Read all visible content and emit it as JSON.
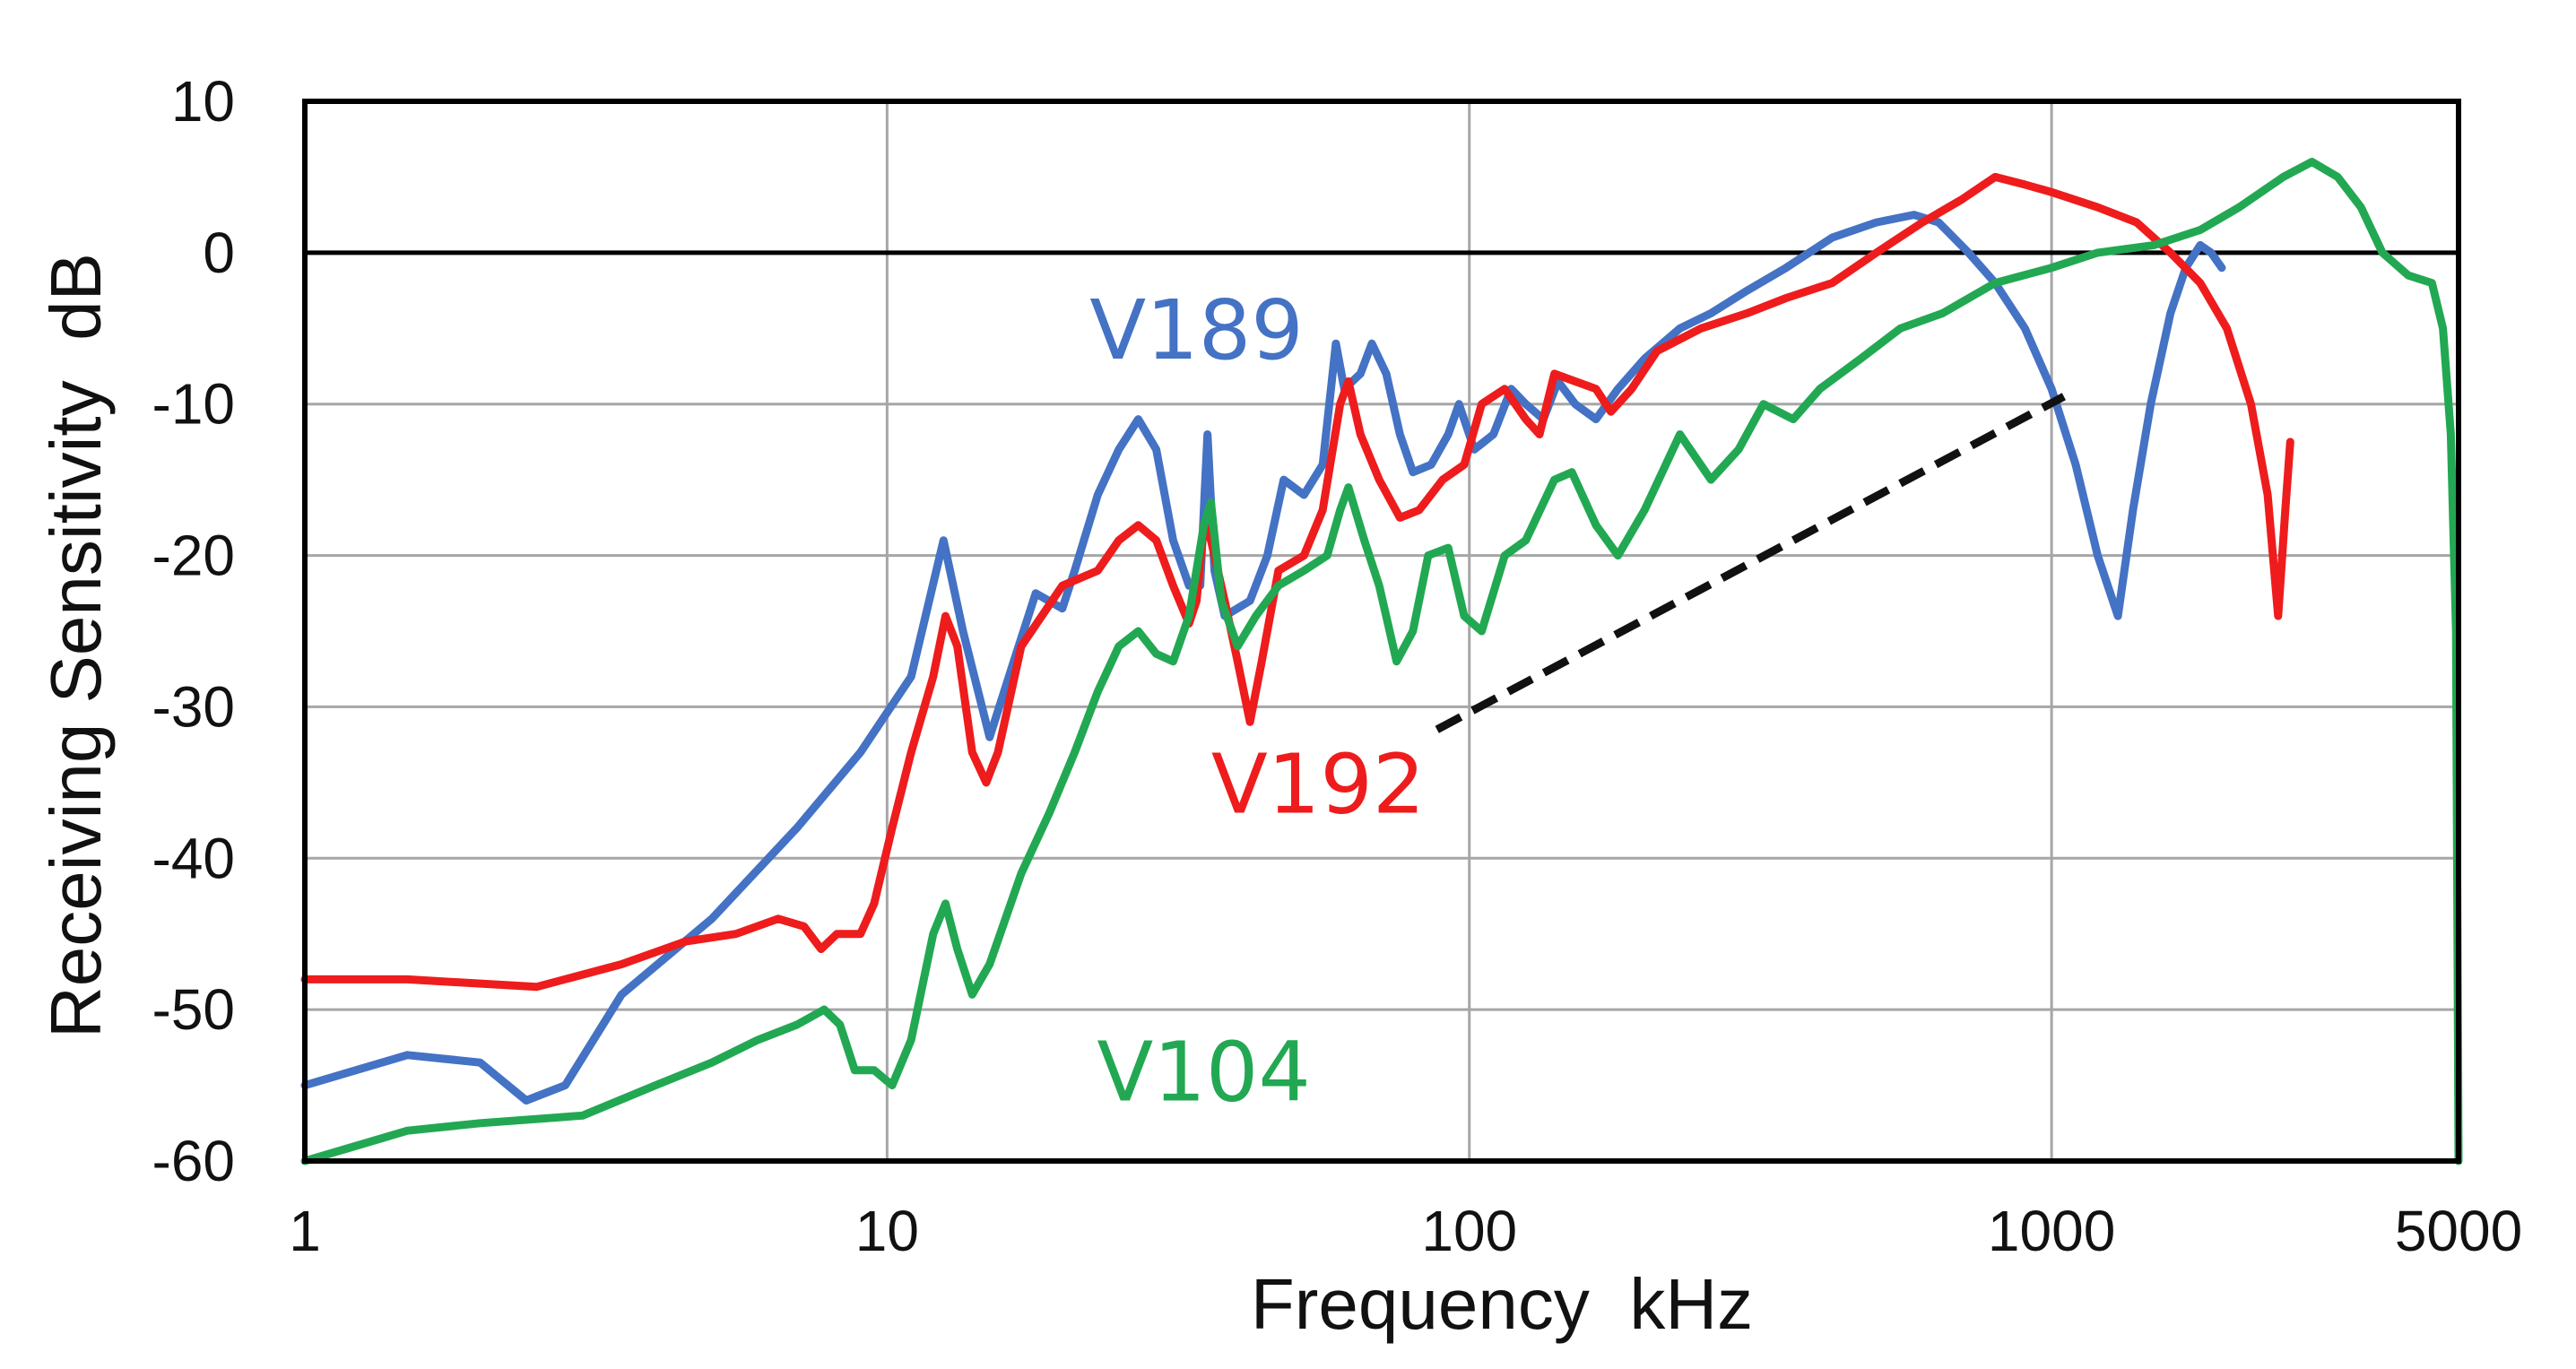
{
  "chart_data": {
    "type": "line",
    "title": "",
    "xlabel": "Frequency  kHz",
    "ylabel": "Receiving Sensitivity  dB",
    "xscale": "log",
    "xlim": [
      1,
      5000
    ],
    "ylim": [
      -60,
      10
    ],
    "xticks": [
      1,
      10,
      100,
      1000,
      5000
    ],
    "xtick_labels": [
      "1",
      "10",
      "100",
      "1000",
      "5000"
    ],
    "yticks": [
      10,
      0,
      -10,
      -20,
      -30,
      -40,
      -50,
      -60
    ],
    "ytick_labels": [
      "10",
      "0",
      "-10",
      "-20",
      "-30",
      "-40",
      "-50",
      "-60"
    ],
    "vertical_gridlines": [
      10,
      100,
      1000
    ],
    "grid": true,
    "zero_line": true,
    "series": [
      {
        "name": "V189",
        "color": "#4472C4",
        "points": [
          [
            1,
            -55
          ],
          [
            1.5,
            -53
          ],
          [
            2,
            -53.5
          ],
          [
            2.4,
            -56
          ],
          [
            2.8,
            -55
          ],
          [
            3.5,
            -49
          ],
          [
            5,
            -44
          ],
          [
            7,
            -38
          ],
          [
            9,
            -33
          ],
          [
            11,
            -28
          ],
          [
            12.5,
            -19
          ],
          [
            13.5,
            -25
          ],
          [
            15,
            -32
          ],
          [
            16.5,
            -27
          ],
          [
            18,
            -22.5
          ],
          [
            20,
            -23.5
          ],
          [
            21,
            -21
          ],
          [
            23,
            -16
          ],
          [
            25,
            -13
          ],
          [
            27,
            -11
          ],
          [
            29,
            -13
          ],
          [
            31,
            -19
          ],
          [
            33,
            -22
          ],
          [
            34.5,
            -22
          ],
          [
            35.5,
            -12
          ],
          [
            36.5,
            -21
          ],
          [
            38,
            -24
          ],
          [
            42,
            -23
          ],
          [
            45,
            -20
          ],
          [
            48,
            -15
          ],
          [
            52,
            -16
          ],
          [
            56,
            -14
          ],
          [
            59,
            -6
          ],
          [
            61,
            -9
          ],
          [
            65,
            -8
          ],
          [
            68,
            -6
          ],
          [
            72,
            -8
          ],
          [
            76,
            -12
          ],
          [
            80,
            -14.5
          ],
          [
            86,
            -14
          ],
          [
            92,
            -12
          ],
          [
            96,
            -10
          ],
          [
            102,
            -13
          ],
          [
            110,
            -12
          ],
          [
            118,
            -9
          ],
          [
            125,
            -10
          ],
          [
            134,
            -11
          ],
          [
            142,
            -8.5
          ],
          [
            152,
            -10
          ],
          [
            165,
            -11
          ],
          [
            180,
            -9
          ],
          [
            200,
            -7
          ],
          [
            230,
            -5
          ],
          [
            260,
            -4
          ],
          [
            300,
            -2.5
          ],
          [
            350,
            -1
          ],
          [
            420,
            1
          ],
          [
            500,
            2
          ],
          [
            580,
            2.5
          ],
          [
            640,
            2
          ],
          [
            720,
            0
          ],
          [
            800,
            -2
          ],
          [
            900,
            -5
          ],
          [
            1000,
            -9
          ],
          [
            1100,
            -14
          ],
          [
            1200,
            -20
          ],
          [
            1300,
            -24
          ],
          [
            1380,
            -17
          ],
          [
            1480,
            -10
          ],
          [
            1600,
            -4
          ],
          [
            1700,
            -1
          ],
          [
            1800,
            0.5
          ],
          [
            1880,
            0
          ],
          [
            1960,
            -1
          ]
        ]
      },
      {
        "name": "V192",
        "color": "#EE1C1C",
        "points": [
          [
            1,
            -48
          ],
          [
            1.5,
            -48
          ],
          [
            2.5,
            -48.5
          ],
          [
            3.5,
            -47
          ],
          [
            4.5,
            -45.5
          ],
          [
            5.5,
            -45
          ],
          [
            6.5,
            -44
          ],
          [
            7.2,
            -44.5
          ],
          [
            7.7,
            -46
          ],
          [
            8.2,
            -45
          ],
          [
            9,
            -45
          ],
          [
            9.5,
            -43
          ],
          [
            10.2,
            -38
          ],
          [
            11,
            -33
          ],
          [
            12,
            -28
          ],
          [
            12.6,
            -24
          ],
          [
            13.2,
            -26
          ],
          [
            14,
            -33
          ],
          [
            14.8,
            -35
          ],
          [
            15.5,
            -33
          ],
          [
            17,
            -26
          ],
          [
            20,
            -22
          ],
          [
            23,
            -21
          ],
          [
            25,
            -19
          ],
          [
            27,
            -18
          ],
          [
            29,
            -19
          ],
          [
            31,
            -22
          ],
          [
            33,
            -24.5
          ],
          [
            34,
            -23
          ],
          [
            35,
            -18
          ],
          [
            36,
            -19
          ],
          [
            38,
            -23
          ],
          [
            40,
            -27
          ],
          [
            42,
            -31
          ],
          [
            44,
            -27
          ],
          [
            47,
            -21
          ],
          [
            52,
            -20
          ],
          [
            56,
            -17
          ],
          [
            60,
            -10
          ],
          [
            62,
            -8.5
          ],
          [
            65,
            -12
          ],
          [
            70,
            -15
          ],
          [
            76,
            -17.5
          ],
          [
            82,
            -17
          ],
          [
            90,
            -15
          ],
          [
            98,
            -14
          ],
          [
            105,
            -10
          ],
          [
            115,
            -9
          ],
          [
            125,
            -11
          ],
          [
            132,
            -12
          ],
          [
            140,
            -8
          ],
          [
            152,
            -8.5
          ],
          [
            165,
            -9
          ],
          [
            175,
            -10.5
          ],
          [
            190,
            -9
          ],
          [
            210,
            -6.5
          ],
          [
            250,
            -5
          ],
          [
            300,
            -4
          ],
          [
            350,
            -3
          ],
          [
            420,
            -2
          ],
          [
            500,
            0
          ],
          [
            600,
            2
          ],
          [
            700,
            3.5
          ],
          [
            800,
            5
          ],
          [
            900,
            4.5
          ],
          [
            1000,
            4
          ],
          [
            1200,
            3
          ],
          [
            1400,
            2
          ],
          [
            1600,
            0
          ],
          [
            1800,
            -2
          ],
          [
            2000,
            -5
          ],
          [
            2200,
            -10
          ],
          [
            2350,
            -16
          ],
          [
            2450,
            -24
          ],
          [
            2520,
            -17
          ],
          [
            2570,
            -12.5
          ]
        ]
      },
      {
        "name": "V104",
        "color": "#22A852",
        "points": [
          [
            1,
            -60
          ],
          [
            1.5,
            -58
          ],
          [
            2,
            -57.5
          ],
          [
            3,
            -57
          ],
          [
            4,
            -55
          ],
          [
            5,
            -53.5
          ],
          [
            6,
            -52
          ],
          [
            7,
            -51
          ],
          [
            7.8,
            -50
          ],
          [
            8.3,
            -51
          ],
          [
            8.8,
            -54
          ],
          [
            9.5,
            -54
          ],
          [
            10.2,
            -55
          ],
          [
            11,
            -52
          ],
          [
            12,
            -45
          ],
          [
            12.6,
            -43
          ],
          [
            13.2,
            -46
          ],
          [
            14,
            -49
          ],
          [
            15,
            -47
          ],
          [
            17,
            -41
          ],
          [
            19,
            -37
          ],
          [
            21,
            -33
          ],
          [
            23,
            -29
          ],
          [
            25,
            -26
          ],
          [
            27,
            -25
          ],
          [
            29,
            -26.5
          ],
          [
            31,
            -27
          ],
          [
            33,
            -24
          ],
          [
            35,
            -18
          ],
          [
            36,
            -16.5
          ],
          [
            37.5,
            -23
          ],
          [
            40,
            -26
          ],
          [
            43,
            -24
          ],
          [
            47,
            -22
          ],
          [
            52,
            -21
          ],
          [
            57,
            -20
          ],
          [
            60,
            -17
          ],
          [
            62,
            -15.5
          ],
          [
            66,
            -19
          ],
          [
            70,
            -22
          ],
          [
            75,
            -27
          ],
          [
            80,
            -25
          ],
          [
            85,
            -20
          ],
          [
            92,
            -19.5
          ],
          [
            98,
            -24
          ],
          [
            105,
            -25
          ],
          [
            115,
            -20
          ],
          [
            125,
            -19
          ],
          [
            140,
            -15
          ],
          [
            150,
            -14.5
          ],
          [
            165,
            -18
          ],
          [
            180,
            -20
          ],
          [
            200,
            -17
          ],
          [
            230,
            -12
          ],
          [
            260,
            -15
          ],
          [
            290,
            -13
          ],
          [
            320,
            -10
          ],
          [
            360,
            -11
          ],
          [
            400,
            -9
          ],
          [
            470,
            -7
          ],
          [
            550,
            -5
          ],
          [
            650,
            -4
          ],
          [
            800,
            -2
          ],
          [
            1000,
            -1
          ],
          [
            1200,
            0
          ],
          [
            1500,
            0.5
          ],
          [
            1800,
            1.5
          ],
          [
            2100,
            3
          ],
          [
            2500,
            5
          ],
          [
            2800,
            6
          ],
          [
            3100,
            5
          ],
          [
            3400,
            3
          ],
          [
            3700,
            0
          ],
          [
            4100,
            -1.5
          ],
          [
            4500,
            -2
          ],
          [
            4700,
            -5
          ],
          [
            4850,
            -12
          ],
          [
            4950,
            -25
          ],
          [
            5000,
            -60
          ]
        ]
      }
    ],
    "annotations": [
      {
        "text": "V189",
        "color": "#4472C4",
        "x": 34,
        "y": -7
      },
      {
        "text": "V192",
        "color": "#EE1C1C",
        "x": 55,
        "y": -37
      },
      {
        "text": "V104",
        "color": "#22A852",
        "x": 35,
        "y": -56
      }
    ],
    "reference_line": {
      "style": "dashed",
      "color": "#111111",
      "from": [
        88,
        -31.5
      ],
      "to": [
        1050,
        -9.5
      ]
    }
  }
}
